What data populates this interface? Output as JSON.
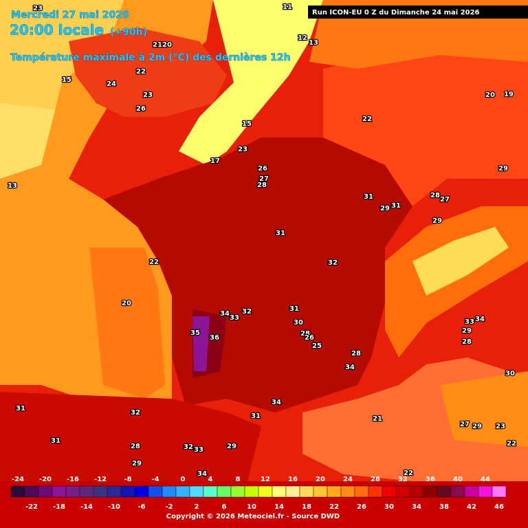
{
  "header": {
    "date": "Mercredi 27 mai 2026",
    "time": "20:00 locale",
    "lead": "(+90h)",
    "variable": "Température maximale à 2m (°C) des dernières 12h",
    "run": "Run ICON-EU 0 Z du Dimanche 24 mai 2026"
  },
  "legend": {
    "values": [
      -24,
      -22,
      -20,
      -18,
      -16,
      -14,
      -12,
      -10,
      -8,
      -6,
      -4,
      -2,
      0,
      2,
      4,
      6,
      8,
      10,
      12,
      14,
      16,
      18,
      20,
      22,
      24,
      26,
      28,
      30,
      32,
      34,
      36,
      38,
      40,
      42,
      44,
      46
    ],
    "colors": [
      "#2d0a3c",
      "#4b0a5a",
      "#6e0a78",
      "#8c1496",
      "#781e8c",
      "#5a287d",
      "#3c3282",
      "#282896",
      "#1414b4",
      "#0000dc",
      "#1450f0",
      "#1e8cff",
      "#32b4ff",
      "#50dcff",
      "#5affc8",
      "#64ff64",
      "#96ff32",
      "#c8ff00",
      "#f0ff1e",
      "#ffff78",
      "#fff096",
      "#ffdc5a",
      "#ffc832",
      "#ffaa1e",
      "#ff8c14",
      "#ff6e0a",
      "#ff3200",
      "#f00000",
      "#d20000",
      "#b40000",
      "#8c0000",
      "#640a1e",
      "#8c0a50",
      "#c800a0",
      "#f014dc",
      "#ff78ff"
    ]
  },
  "map_labels": [
    23,
    11,
    12,
    13,
    21,
    20,
    22,
    15,
    24,
    23,
    26,
    20,
    19,
    22,
    15,
    23,
    17,
    26,
    27,
    28,
    29,
    13,
    31,
    29,
    31,
    28,
    27,
    29,
    31,
    22,
    32,
    20,
    34,
    33,
    32,
    31,
    30,
    33,
    34,
    35,
    36,
    28,
    26,
    25,
    29,
    28,
    28,
    34,
    30,
    34,
    31,
    32,
    31,
    21,
    27,
    29,
    23,
    31,
    28,
    32,
    33,
    29,
    22,
    29,
    34,
    22
  ],
  "footer": "Copyright © 2026 Meteociel.fr - Source DWD"
}
